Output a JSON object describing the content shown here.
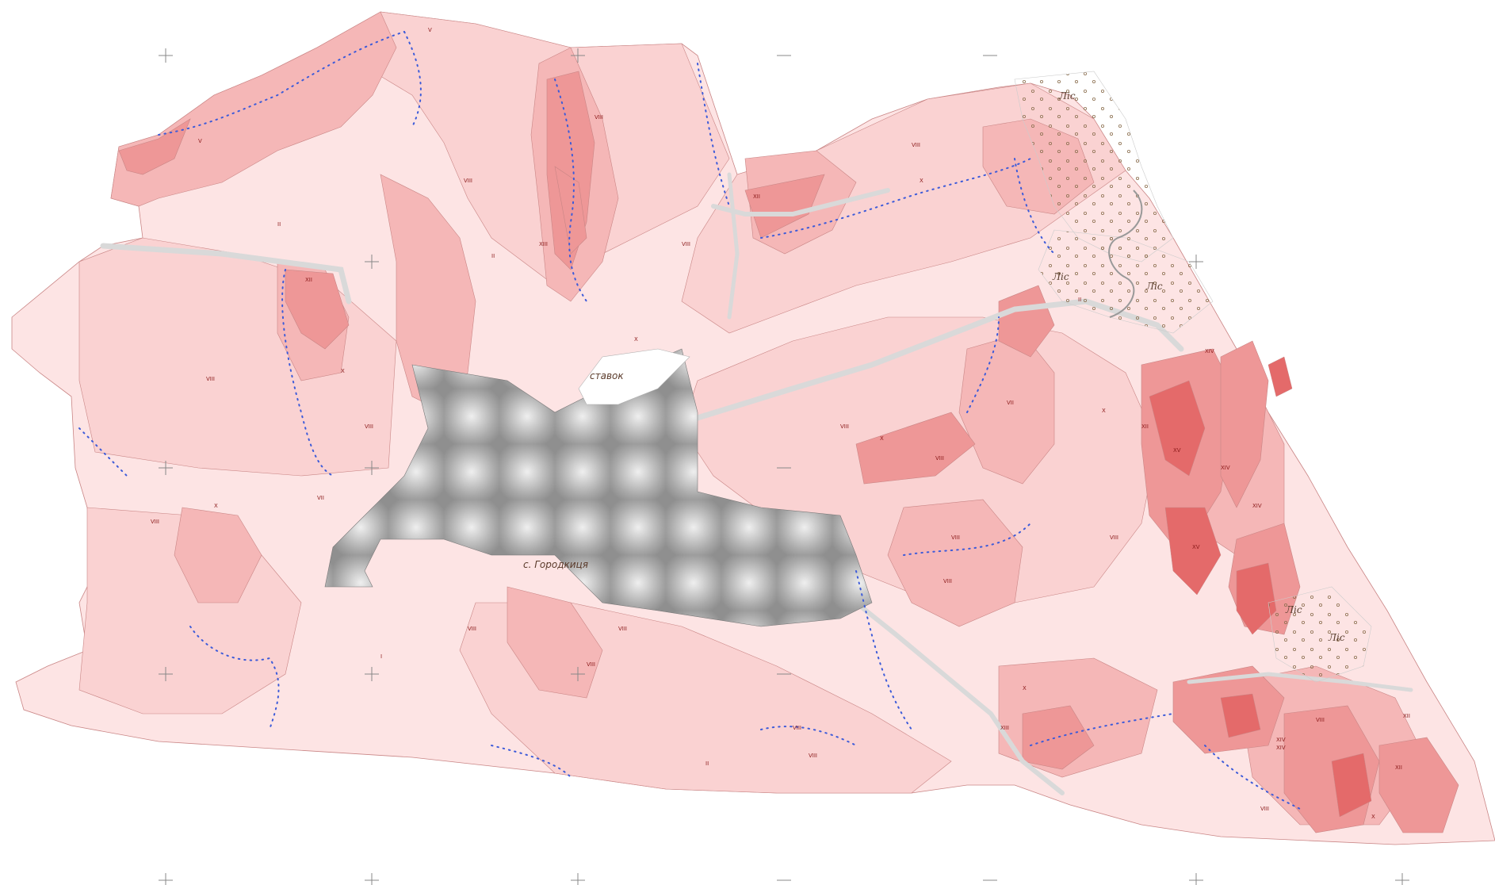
{
  "map": {
    "place_labels": [
      {
        "id": "village",
        "text": "с. Городкиця"
      },
      {
        "id": "pond",
        "text": "ставок"
      }
    ],
    "forest_labels": [
      "Ліс",
      "Ліс",
      "Ліс",
      "Ліс",
      "Ліс"
    ],
    "class_labels": [
      "VIII",
      "VIII",
      "V",
      "X",
      "II",
      "VIII",
      "VII",
      "X",
      "XII",
      "VIII",
      "V",
      "XIII",
      "VIII",
      "X",
      "II",
      "VIII",
      "XII",
      "X",
      "VIII",
      "XIV",
      "XV",
      "XIV",
      "XII",
      "X",
      "XIV",
      "XV",
      "XIV",
      "XII",
      "VIII",
      "VII",
      "II",
      "VIII",
      "VIII",
      "X",
      "XIII",
      "VIII",
      "VIII",
      "I",
      "VIII",
      "VIII",
      "II",
      "VIII",
      "VIII",
      "X",
      "VIII",
      "XII",
      "XIV",
      "X",
      "VIII",
      "VIII"
    ],
    "colors": {
      "background": "#ffffff",
      "class_lightest": "#fde4e4",
      "class_light": "#fad2d2",
      "class_medium": "#f5b7b7",
      "class_strong": "#ee9797",
      "class_intense": "#e46a6a",
      "settlement": "#bfbfbf",
      "road": "#d9d9d9",
      "contour_line": "#c98585",
      "dotted_boundary": "#3d5bd9",
      "forest_dot": "#8c7050"
    }
  }
}
